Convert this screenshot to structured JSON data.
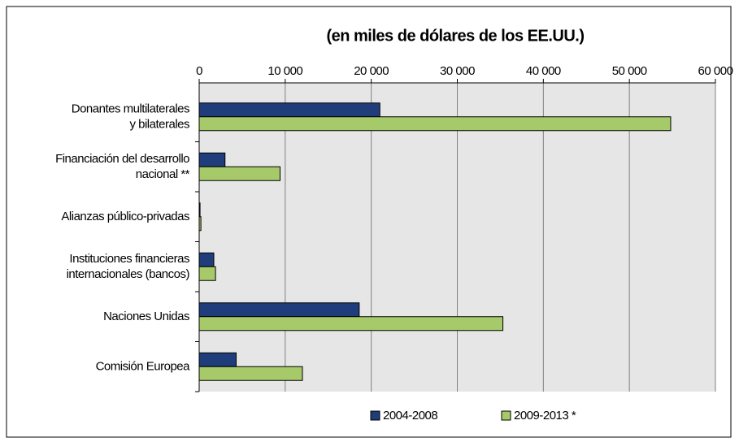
{
  "chart_data": {
    "type": "barh",
    "title": "(en miles de dólares de los EE.UU.)",
    "categories": [
      "Donantes multilaterales\ny bilaterales",
      "Financiación del desarrollo\nnacional **",
      "Alianzas público-privadas",
      "Instituciones financieras\ninternacionales (bancos)",
      "Naciones Unidas",
      "Comisión Europea"
    ],
    "series": [
      {
        "name": "2004-2008",
        "color": "#1f3d7a",
        "values": [
          21000,
          3000,
          100,
          1700,
          18600,
          4300
        ]
      },
      {
        "name": "2009-2013 *",
        "color": "#a6c96a",
        "values": [
          54800,
          9400,
          200,
          1900,
          35300,
          12000
        ]
      }
    ],
    "xlim": [
      0,
      60000
    ],
    "xticks": [
      0,
      {
        "value": 10000,
        "label": "10 000"
      },
      {
        "value": 20000,
        "label": "20 000"
      },
      {
        "value": 30000,
        "label": "30 000"
      },
      {
        "value": 40000,
        "label": "40 000"
      },
      {
        "value": 50000,
        "label": "50 000"
      },
      {
        "value": 60000,
        "label": "60 000"
      }
    ],
    "grid": true,
    "legend": "bottom"
  }
}
